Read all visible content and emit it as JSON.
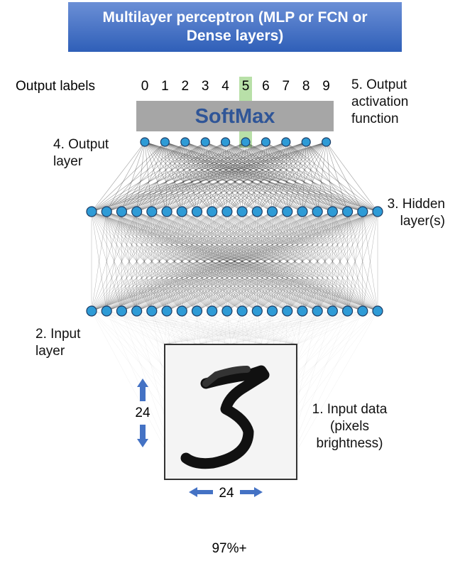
{
  "title": "Multilayer perceptron (MLP or FCN or Dense layers)",
  "output_labels": {
    "label": "Output labels",
    "digits": [
      "0",
      "1",
      "2",
      "3",
      "4",
      "5",
      "6",
      "7",
      "8",
      "9"
    ]
  },
  "softmax": "SoftMax",
  "annotations": {
    "output_activation": "5. Output activation function",
    "output_layer": "4. Output layer",
    "hidden_layer": "3. Hidden layer(s)",
    "input_layer": "2. Input layer",
    "input_data": "1. Input data (pixels brightness)"
  },
  "dimensions": {
    "height": "24",
    "width": "24"
  },
  "accuracy": "97%+"
}
